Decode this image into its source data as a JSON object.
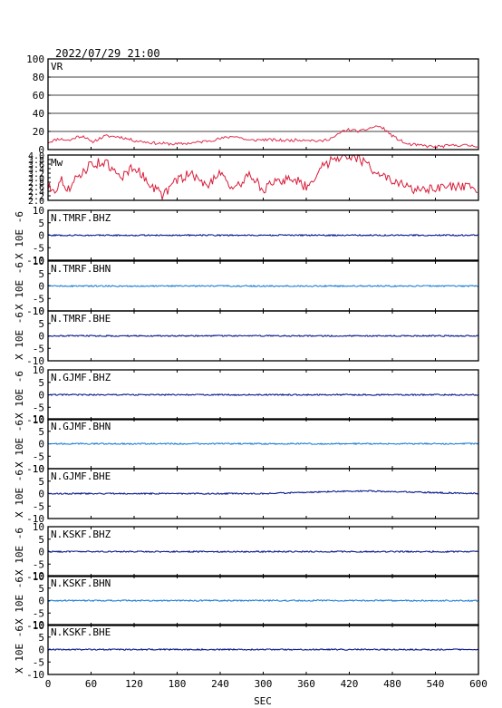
{
  "header": {
    "timestamp": "2022/07/29 21:00"
  },
  "colors": {
    "frame": "#000000",
    "vr": "#e0304f",
    "mw": "#d81d3a",
    "dark": "#0a1a8c",
    "light": "#1f7fd6"
  },
  "unit_label": "X 10E -6",
  "chart_data": [
    {
      "type": "line",
      "label": "VR",
      "xlim": [
        0,
        600
      ],
      "ylim": [
        0,
        100
      ],
      "ticks": [
        "100",
        "80",
        "60",
        "40",
        "20",
        "0"
      ],
      "grid": true,
      "x": [
        0,
        15,
        30,
        40,
        50,
        60,
        80,
        100,
        120,
        150,
        180,
        210,
        240,
        260,
        280,
        300,
        330,
        360,
        380,
        400,
        410,
        420,
        435,
        450,
        460,
        470,
        480,
        500,
        540,
        570,
        600
      ],
      "y": [
        8,
        12,
        10,
        14,
        15,
        8,
        15,
        14,
        10,
        7,
        6,
        8,
        12,
        15,
        10,
        11,
        10,
        11,
        9,
        14,
        20,
        22,
        20,
        24,
        26,
        22,
        15,
        6,
        3,
        5,
        4
      ]
    },
    {
      "type": "line",
      "label": "Mw",
      "xlim": [
        0,
        600
      ],
      "ylim": [
        2.0,
        4.0
      ],
      "ticks": [
        "4.0",
        "3.8",
        "3.6",
        "3.4",
        "3.2",
        "3.0",
        "2.8",
        "2.6",
        "2.4",
        "2.2",
        "2.0"
      ],
      "grid": false,
      "x": [
        0,
        10,
        20,
        30,
        40,
        60,
        80,
        90,
        100,
        120,
        140,
        160,
        180,
        200,
        220,
        240,
        260,
        280,
        300,
        320,
        340,
        360,
        380,
        400,
        420,
        440,
        460,
        480,
        500,
        520,
        560,
        600
      ],
      "y": [
        2.6,
        2.5,
        2.9,
        2.4,
        3.0,
        3.6,
        3.7,
        3.3,
        3.0,
        3.5,
        2.8,
        2.2,
        2.9,
        3.2,
        2.6,
        3.3,
        2.4,
        3.2,
        2.5,
        2.8,
        3.0,
        2.6,
        3.4,
        3.9,
        4.0,
        3.7,
        3.2,
        2.8,
        2.6,
        2.4,
        2.6,
        2.5
      ]
    },
    {
      "type": "line",
      "label": "N.TMRF.BHZ",
      "xlim": [
        0,
        600
      ],
      "ylim": [
        -10,
        10
      ],
      "ticks": [
        "10",
        "5",
        "0",
        "-5",
        "-10"
      ],
      "colorKey": "dark",
      "x": [
        0,
        600
      ],
      "y": [
        0,
        0
      ]
    },
    {
      "type": "line",
      "label": "N.TMRF.BHN",
      "xlim": [
        0,
        600
      ],
      "ylim": [
        -10,
        10
      ],
      "ticks": [
        "10",
        "5",
        "0",
        "-5",
        "-10"
      ],
      "colorKey": "light",
      "x": [
        0,
        600
      ],
      "y": [
        0,
        0
      ]
    },
    {
      "type": "line",
      "label": "N.TMRF.BHE",
      "xlim": [
        0,
        600
      ],
      "ylim": [
        -10,
        10
      ],
      "ticks": [
        "10",
        "5",
        "0",
        "-5",
        "-10"
      ],
      "colorKey": "dark",
      "x": [
        0,
        600
      ],
      "y": [
        0,
        0
      ]
    },
    {
      "type": "line",
      "label": "N.GJMF.BHZ",
      "xlim": [
        0,
        600
      ],
      "ylim": [
        -10,
        10
      ],
      "ticks": [
        "10",
        "5",
        "0",
        "-5",
        "-10"
      ],
      "colorKey": "dark",
      "x": [
        0,
        600
      ],
      "y": [
        0,
        0
      ]
    },
    {
      "type": "line",
      "label": "N.GJMF.BHN",
      "xlim": [
        0,
        600
      ],
      "ylim": [
        -10,
        10
      ],
      "ticks": [
        "10",
        "5",
        "0",
        "-5",
        "-10"
      ],
      "colorKey": "light",
      "x": [
        0,
        600
      ],
      "y": [
        0,
        0
      ]
    },
    {
      "type": "line",
      "label": "N.GJMF.BHE",
      "xlim": [
        0,
        600
      ],
      "ylim": [
        -10,
        10
      ],
      "ticks": [
        "10",
        "5",
        "0",
        "-5",
        "-10"
      ],
      "colorKey": "dark",
      "x": [
        0,
        300,
        420,
        450,
        600
      ],
      "y": [
        0,
        0,
        1,
        1,
        0
      ]
    },
    {
      "type": "line",
      "label": "N.KSKF.BHZ",
      "xlim": [
        0,
        600
      ],
      "ylim": [
        -10,
        10
      ],
      "ticks": [
        "10",
        "5",
        "0",
        "-5",
        "-10"
      ],
      "colorKey": "dark",
      "x": [
        0,
        600
      ],
      "y": [
        0,
        0
      ]
    },
    {
      "type": "line",
      "label": "N.KSKF.BHN",
      "xlim": [
        0,
        600
      ],
      "ylim": [
        -10,
        10
      ],
      "ticks": [
        "10",
        "5",
        "0",
        "-5",
        "-10"
      ],
      "colorKey": "light",
      "x": [
        0,
        600
      ],
      "y": [
        0,
        0
      ]
    },
    {
      "type": "line",
      "label": "N.KSKF.BHE",
      "xlim": [
        0,
        600
      ],
      "ylim": [
        -10,
        10
      ],
      "ticks": [
        "10",
        "5",
        "0",
        "-5",
        "-10"
      ],
      "colorKey": "dark",
      "x": [
        0,
        600
      ],
      "y": [
        0,
        0
      ]
    }
  ],
  "x_axis": {
    "label": "SEC",
    "ticks": [
      "0",
      "60",
      "120",
      "180",
      "240",
      "300",
      "360",
      "420",
      "480",
      "540",
      "600"
    ]
  }
}
